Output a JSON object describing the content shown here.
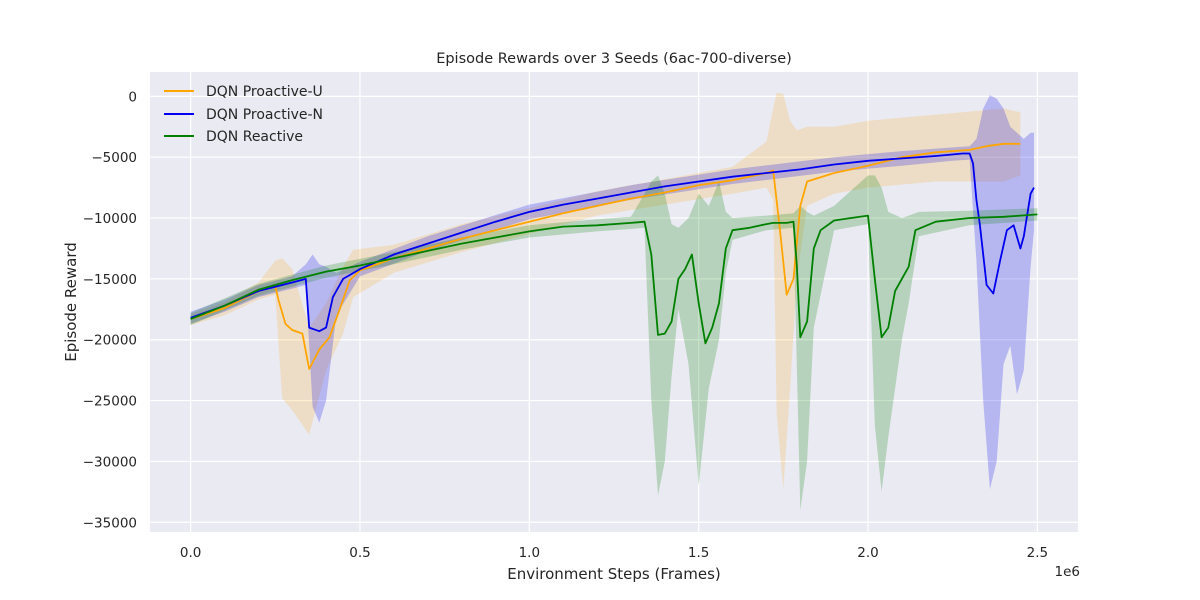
{
  "chart_data": {
    "type": "line",
    "title": "Episode Rewards over 3 Seeds (6ac-700-diverse)",
    "xlabel": "Environment Steps (Frames)",
    "ylabel": "Episode Reward",
    "x_multiplier_label": "1e6",
    "xlim": [
      -0.12,
      2.62
    ],
    "ylim": [
      -35800,
      2000
    ],
    "x_ticks": [
      0.0,
      0.5,
      1.0,
      1.5,
      2.0,
      2.5
    ],
    "x_tick_labels": [
      "0.0",
      "0.5",
      "1.0",
      "1.5",
      "2.0",
      "2.5"
    ],
    "y_ticks": [
      0,
      -5000,
      -10000,
      -15000,
      -20000,
      -25000,
      -30000,
      -35000
    ],
    "y_tick_labels": [
      "0",
      "−5000",
      "−10000",
      "−15000",
      "−20000",
      "−25000",
      "−30000",
      "−35000"
    ],
    "grid": true,
    "legend_position": "top-left",
    "series": [
      {
        "name": "DQN Proactive-U",
        "color": "#ffa500",
        "points": [
          [
            0.0,
            -18300
          ],
          [
            0.1,
            -17400
          ],
          [
            0.2,
            -16000
          ],
          [
            0.25,
            -15600
          ],
          [
            0.26,
            -16800
          ],
          [
            0.28,
            -18700
          ],
          [
            0.3,
            -19200
          ],
          [
            0.33,
            -19500
          ],
          [
            0.35,
            -22400
          ],
          [
            0.38,
            -20800
          ],
          [
            0.41,
            -19800
          ],
          [
            0.44,
            -17500
          ],
          [
            0.47,
            -15100
          ],
          [
            0.5,
            -14300
          ],
          [
            0.6,
            -13300
          ],
          [
            0.7,
            -12500
          ],
          [
            0.8,
            -11700
          ],
          [
            0.9,
            -11000
          ],
          [
            1.0,
            -10300
          ],
          [
            1.1,
            -9600
          ],
          [
            1.2,
            -9000
          ],
          [
            1.3,
            -8400
          ],
          [
            1.4,
            -7900
          ],
          [
            1.5,
            -7300
          ],
          [
            1.6,
            -6900
          ],
          [
            1.7,
            -6300
          ],
          [
            1.72,
            -6100
          ],
          [
            1.74,
            -11000
          ],
          [
            1.76,
            -16300
          ],
          [
            1.78,
            -15000
          ],
          [
            1.8,
            -9000
          ],
          [
            1.82,
            -7000
          ],
          [
            1.9,
            -6300
          ],
          [
            2.0,
            -5700
          ],
          [
            2.1,
            -5000
          ],
          [
            2.2,
            -4600
          ],
          [
            2.3,
            -4400
          ],
          [
            2.35,
            -4100
          ],
          [
            2.4,
            -3900
          ],
          [
            2.45,
            -3900
          ]
        ],
        "band": [
          [
            0.0,
            -18800,
            -17900
          ],
          [
            0.1,
            -18000,
            -16900
          ],
          [
            0.2,
            -16700,
            -15300
          ],
          [
            0.25,
            -16300,
            -13500
          ],
          [
            0.27,
            -24800,
            -13300
          ],
          [
            0.3,
            -25800,
            -14200
          ],
          [
            0.35,
            -27800,
            -19000
          ],
          [
            0.4,
            -22500,
            -17000
          ],
          [
            0.45,
            -19500,
            -14000
          ],
          [
            0.48,
            -16500,
            -12600
          ],
          [
            0.6,
            -14500,
            -12200
          ],
          [
            0.8,
            -12800,
            -10500
          ],
          [
            1.0,
            -11300,
            -9200
          ],
          [
            1.2,
            -9800,
            -7800
          ],
          [
            1.4,
            -8900,
            -6800
          ],
          [
            1.6,
            -8000,
            -5800
          ],
          [
            1.7,
            -7500,
            -3700
          ],
          [
            1.72,
            -8500,
            -1000
          ],
          [
            1.73,
            -26000,
            300
          ],
          [
            1.75,
            -32300,
            200
          ],
          [
            1.77,
            -24000,
            -2000
          ],
          [
            1.79,
            -15000,
            -2800
          ],
          [
            1.82,
            -9000,
            -2500
          ],
          [
            1.9,
            -8000,
            -2500
          ],
          [
            2.0,
            -7500,
            -2000
          ],
          [
            2.2,
            -7000,
            -1500
          ],
          [
            2.4,
            -7000,
            -1000
          ],
          [
            2.45,
            -6500,
            -1300
          ]
        ]
      },
      {
        "name": "DQN Proactive-N",
        "color": "#0000ee",
        "points": [
          [
            0.0,
            -18200
          ],
          [
            0.1,
            -17200
          ],
          [
            0.2,
            -16000
          ],
          [
            0.3,
            -15300
          ],
          [
            0.34,
            -15000
          ],
          [
            0.35,
            -19000
          ],
          [
            0.38,
            -19300
          ],
          [
            0.4,
            -19000
          ],
          [
            0.42,
            -16500
          ],
          [
            0.45,
            -15000
          ],
          [
            0.5,
            -14200
          ],
          [
            0.6,
            -13000
          ],
          [
            0.7,
            -12100
          ],
          [
            0.8,
            -11200
          ],
          [
            0.9,
            -10300
          ],
          [
            1.0,
            -9500
          ],
          [
            1.1,
            -8900
          ],
          [
            1.2,
            -8400
          ],
          [
            1.3,
            -7900
          ],
          [
            1.4,
            -7400
          ],
          [
            1.5,
            -7000
          ],
          [
            1.6,
            -6600
          ],
          [
            1.7,
            -6300
          ],
          [
            1.8,
            -6000
          ],
          [
            1.9,
            -5600
          ],
          [
            2.0,
            -5300
          ],
          [
            2.1,
            -5100
          ],
          [
            2.2,
            -4900
          ],
          [
            2.28,
            -4700
          ],
          [
            2.3,
            -4700
          ],
          [
            2.31,
            -5500
          ],
          [
            2.32,
            -8500
          ],
          [
            2.33,
            -10500
          ],
          [
            2.34,
            -13000
          ],
          [
            2.35,
            -15500
          ],
          [
            2.37,
            -16200
          ],
          [
            2.39,
            -13500
          ],
          [
            2.41,
            -11000
          ],
          [
            2.43,
            -10600
          ],
          [
            2.45,
            -12500
          ],
          [
            2.46,
            -11500
          ],
          [
            2.48,
            -8000
          ],
          [
            2.49,
            -7500
          ]
        ],
        "band": [
          [
            0.0,
            -18700,
            -17700
          ],
          [
            0.1,
            -17700,
            -16700
          ],
          [
            0.2,
            -16500,
            -15500
          ],
          [
            0.3,
            -15800,
            -14800
          ],
          [
            0.34,
            -15500,
            -13800
          ],
          [
            0.36,
            -25500,
            -13000
          ],
          [
            0.38,
            -26800,
            -13800
          ],
          [
            0.4,
            -25000,
            -14000
          ],
          [
            0.43,
            -18000,
            -14500
          ],
          [
            0.5,
            -14800,
            -13600
          ],
          [
            0.7,
            -12700,
            -11500
          ],
          [
            1.0,
            -10100,
            -8900
          ],
          [
            1.3,
            -8500,
            -7300
          ],
          [
            1.6,
            -7200,
            -6000
          ],
          [
            1.9,
            -6200,
            -5000
          ],
          [
            2.1,
            -5700,
            -4500
          ],
          [
            2.25,
            -5300,
            -4200
          ],
          [
            2.3,
            -5200,
            -4100
          ],
          [
            2.32,
            -13500,
            -3500
          ],
          [
            2.34,
            -25000,
            -1000
          ],
          [
            2.36,
            -32300,
            100
          ],
          [
            2.38,
            -30000,
            -200
          ],
          [
            2.4,
            -22000,
            -1000
          ],
          [
            2.42,
            -20500,
            -2500
          ],
          [
            2.44,
            -24500,
            -3000
          ],
          [
            2.46,
            -22500,
            -3500
          ],
          [
            2.48,
            -14000,
            -3000
          ],
          [
            2.49,
            -11000,
            -3000
          ]
        ]
      },
      {
        "name": "DQN Reactive",
        "color": "#008000",
        "points": [
          [
            0.0,
            -18300
          ],
          [
            0.1,
            -17200
          ],
          [
            0.2,
            -15900
          ],
          [
            0.3,
            -15100
          ],
          [
            0.4,
            -14400
          ],
          [
            0.5,
            -13900
          ],
          [
            0.6,
            -13300
          ],
          [
            0.7,
            -12700
          ],
          [
            0.8,
            -12100
          ],
          [
            0.9,
            -11600
          ],
          [
            1.0,
            -11100
          ],
          [
            1.1,
            -10700
          ],
          [
            1.2,
            -10600
          ],
          [
            1.3,
            -10400
          ],
          [
            1.34,
            -10300
          ],
          [
            1.36,
            -13000
          ],
          [
            1.38,
            -19600
          ],
          [
            1.4,
            -19500
          ],
          [
            1.42,
            -18500
          ],
          [
            1.44,
            -15000
          ],
          [
            1.46,
            -14200
          ],
          [
            1.48,
            -13000
          ],
          [
            1.5,
            -17000
          ],
          [
            1.52,
            -20300
          ],
          [
            1.54,
            -19000
          ],
          [
            1.56,
            -17000
          ],
          [
            1.58,
            -12500
          ],
          [
            1.6,
            -11000
          ],
          [
            1.65,
            -10800
          ],
          [
            1.7,
            -10500
          ],
          [
            1.72,
            -10400
          ],
          [
            1.76,
            -10400
          ],
          [
            1.78,
            -10300
          ],
          [
            1.79,
            -14000
          ],
          [
            1.8,
            -19800
          ],
          [
            1.82,
            -18500
          ],
          [
            1.84,
            -12500
          ],
          [
            1.86,
            -11000
          ],
          [
            1.9,
            -10200
          ],
          [
            1.95,
            -10000
          ],
          [
            2.0,
            -9800
          ],
          [
            2.02,
            -15000
          ],
          [
            2.04,
            -19800
          ],
          [
            2.06,
            -19000
          ],
          [
            2.08,
            -16000
          ],
          [
            2.12,
            -14000
          ],
          [
            2.14,
            -11000
          ],
          [
            2.2,
            -10300
          ],
          [
            2.3,
            -10000
          ],
          [
            2.4,
            -9900
          ],
          [
            2.45,
            -9800
          ],
          [
            2.5,
            -9700
          ]
        ],
        "band": [
          [
            0.0,
            -18800,
            -17800
          ],
          [
            0.2,
            -16400,
            -15400
          ],
          [
            0.4,
            -14900,
            -13900
          ],
          [
            0.6,
            -13800,
            -12800
          ],
          [
            0.8,
            -12600,
            -11600
          ],
          [
            1.0,
            -11600,
            -10600
          ],
          [
            1.2,
            -11100,
            -10100
          ],
          [
            1.3,
            -10900,
            -9900
          ],
          [
            1.34,
            -10800,
            -8000
          ],
          [
            1.36,
            -25000,
            -7000
          ],
          [
            1.38,
            -32800,
            -6500
          ],
          [
            1.4,
            -30000,
            -8000
          ],
          [
            1.42,
            -23000,
            -10500
          ],
          [
            1.44,
            -17500,
            -10800
          ],
          [
            1.47,
            -22000,
            -10000
          ],
          [
            1.5,
            -32000,
            -8000
          ],
          [
            1.53,
            -24000,
            -9000
          ],
          [
            1.56,
            -20000,
            -7000
          ],
          [
            1.58,
            -14500,
            -9500
          ],
          [
            1.6,
            -11800,
            -10000
          ],
          [
            1.7,
            -11000,
            -9800
          ],
          [
            1.78,
            -10800,
            -9600
          ],
          [
            1.8,
            -34000,
            -9000
          ],
          [
            1.82,
            -30000,
            -9500
          ],
          [
            1.84,
            -19000,
            -9800
          ],
          [
            1.9,
            -11000,
            -9000
          ],
          [
            2.0,
            -10500,
            -6500
          ],
          [
            2.02,
            -27000,
            -6500
          ],
          [
            2.04,
            -32500,
            -7500
          ],
          [
            2.06,
            -28000,
            -9500
          ],
          [
            2.1,
            -20000,
            -10000
          ],
          [
            2.12,
            -17000,
            -9800
          ],
          [
            2.15,
            -11500,
            -9500
          ],
          [
            2.3,
            -10600,
            -9400
          ],
          [
            2.5,
            -10200,
            -9200
          ]
        ]
      }
    ]
  }
}
